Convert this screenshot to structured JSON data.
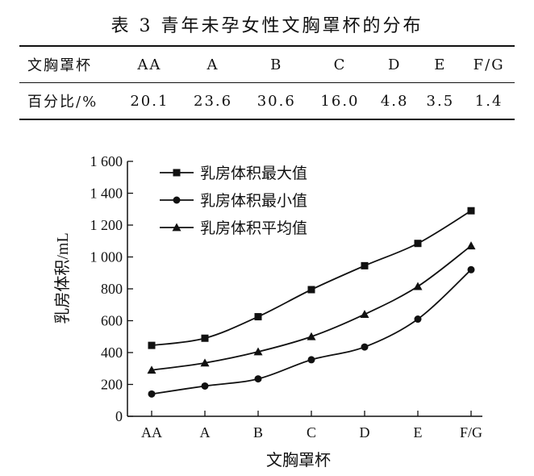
{
  "table": {
    "title": "表 3   青年未孕女性文胸罩杯的分布",
    "header_label": "文胸罩杯",
    "cups": [
      "AA",
      "A",
      "B",
      "C",
      "D",
      "E",
      "F/G"
    ],
    "percent_label": "百分比/%",
    "percents": [
      "20.1",
      "23.6",
      "30.6",
      "16.0",
      "4.8",
      "3.5",
      "1.4"
    ]
  },
  "chart_data": {
    "type": "line",
    "categories": [
      "AA",
      "A",
      "B",
      "C",
      "D",
      "E",
      "F/G"
    ],
    "xlabel": "文胸罩杯",
    "ylabel": "乳房体积/mL",
    "ylim": [
      0,
      1600
    ],
    "yticks": [
      0,
      200,
      400,
      600,
      800,
      1000,
      1200,
      1400,
      1600
    ],
    "ytick_labels": [
      "0",
      "200",
      "400",
      "600",
      "800",
      "1 000",
      "1 200",
      "1 400",
      "1 600"
    ],
    "grid": false,
    "legend_position": "top-left",
    "series": [
      {
        "name": "乳房体积最大值",
        "marker": "square",
        "values": [
          445,
          490,
          625,
          795,
          945,
          1085,
          1290
        ]
      },
      {
        "name": "乳房体积最小值",
        "marker": "circle",
        "values": [
          140,
          190,
          235,
          355,
          435,
          610,
          920
        ]
      },
      {
        "name": "乳房体积平均值",
        "marker": "triangle",
        "values": [
          290,
          335,
          405,
          500,
          640,
          815,
          1070
        ]
      }
    ],
    "line_color": "#111111"
  }
}
